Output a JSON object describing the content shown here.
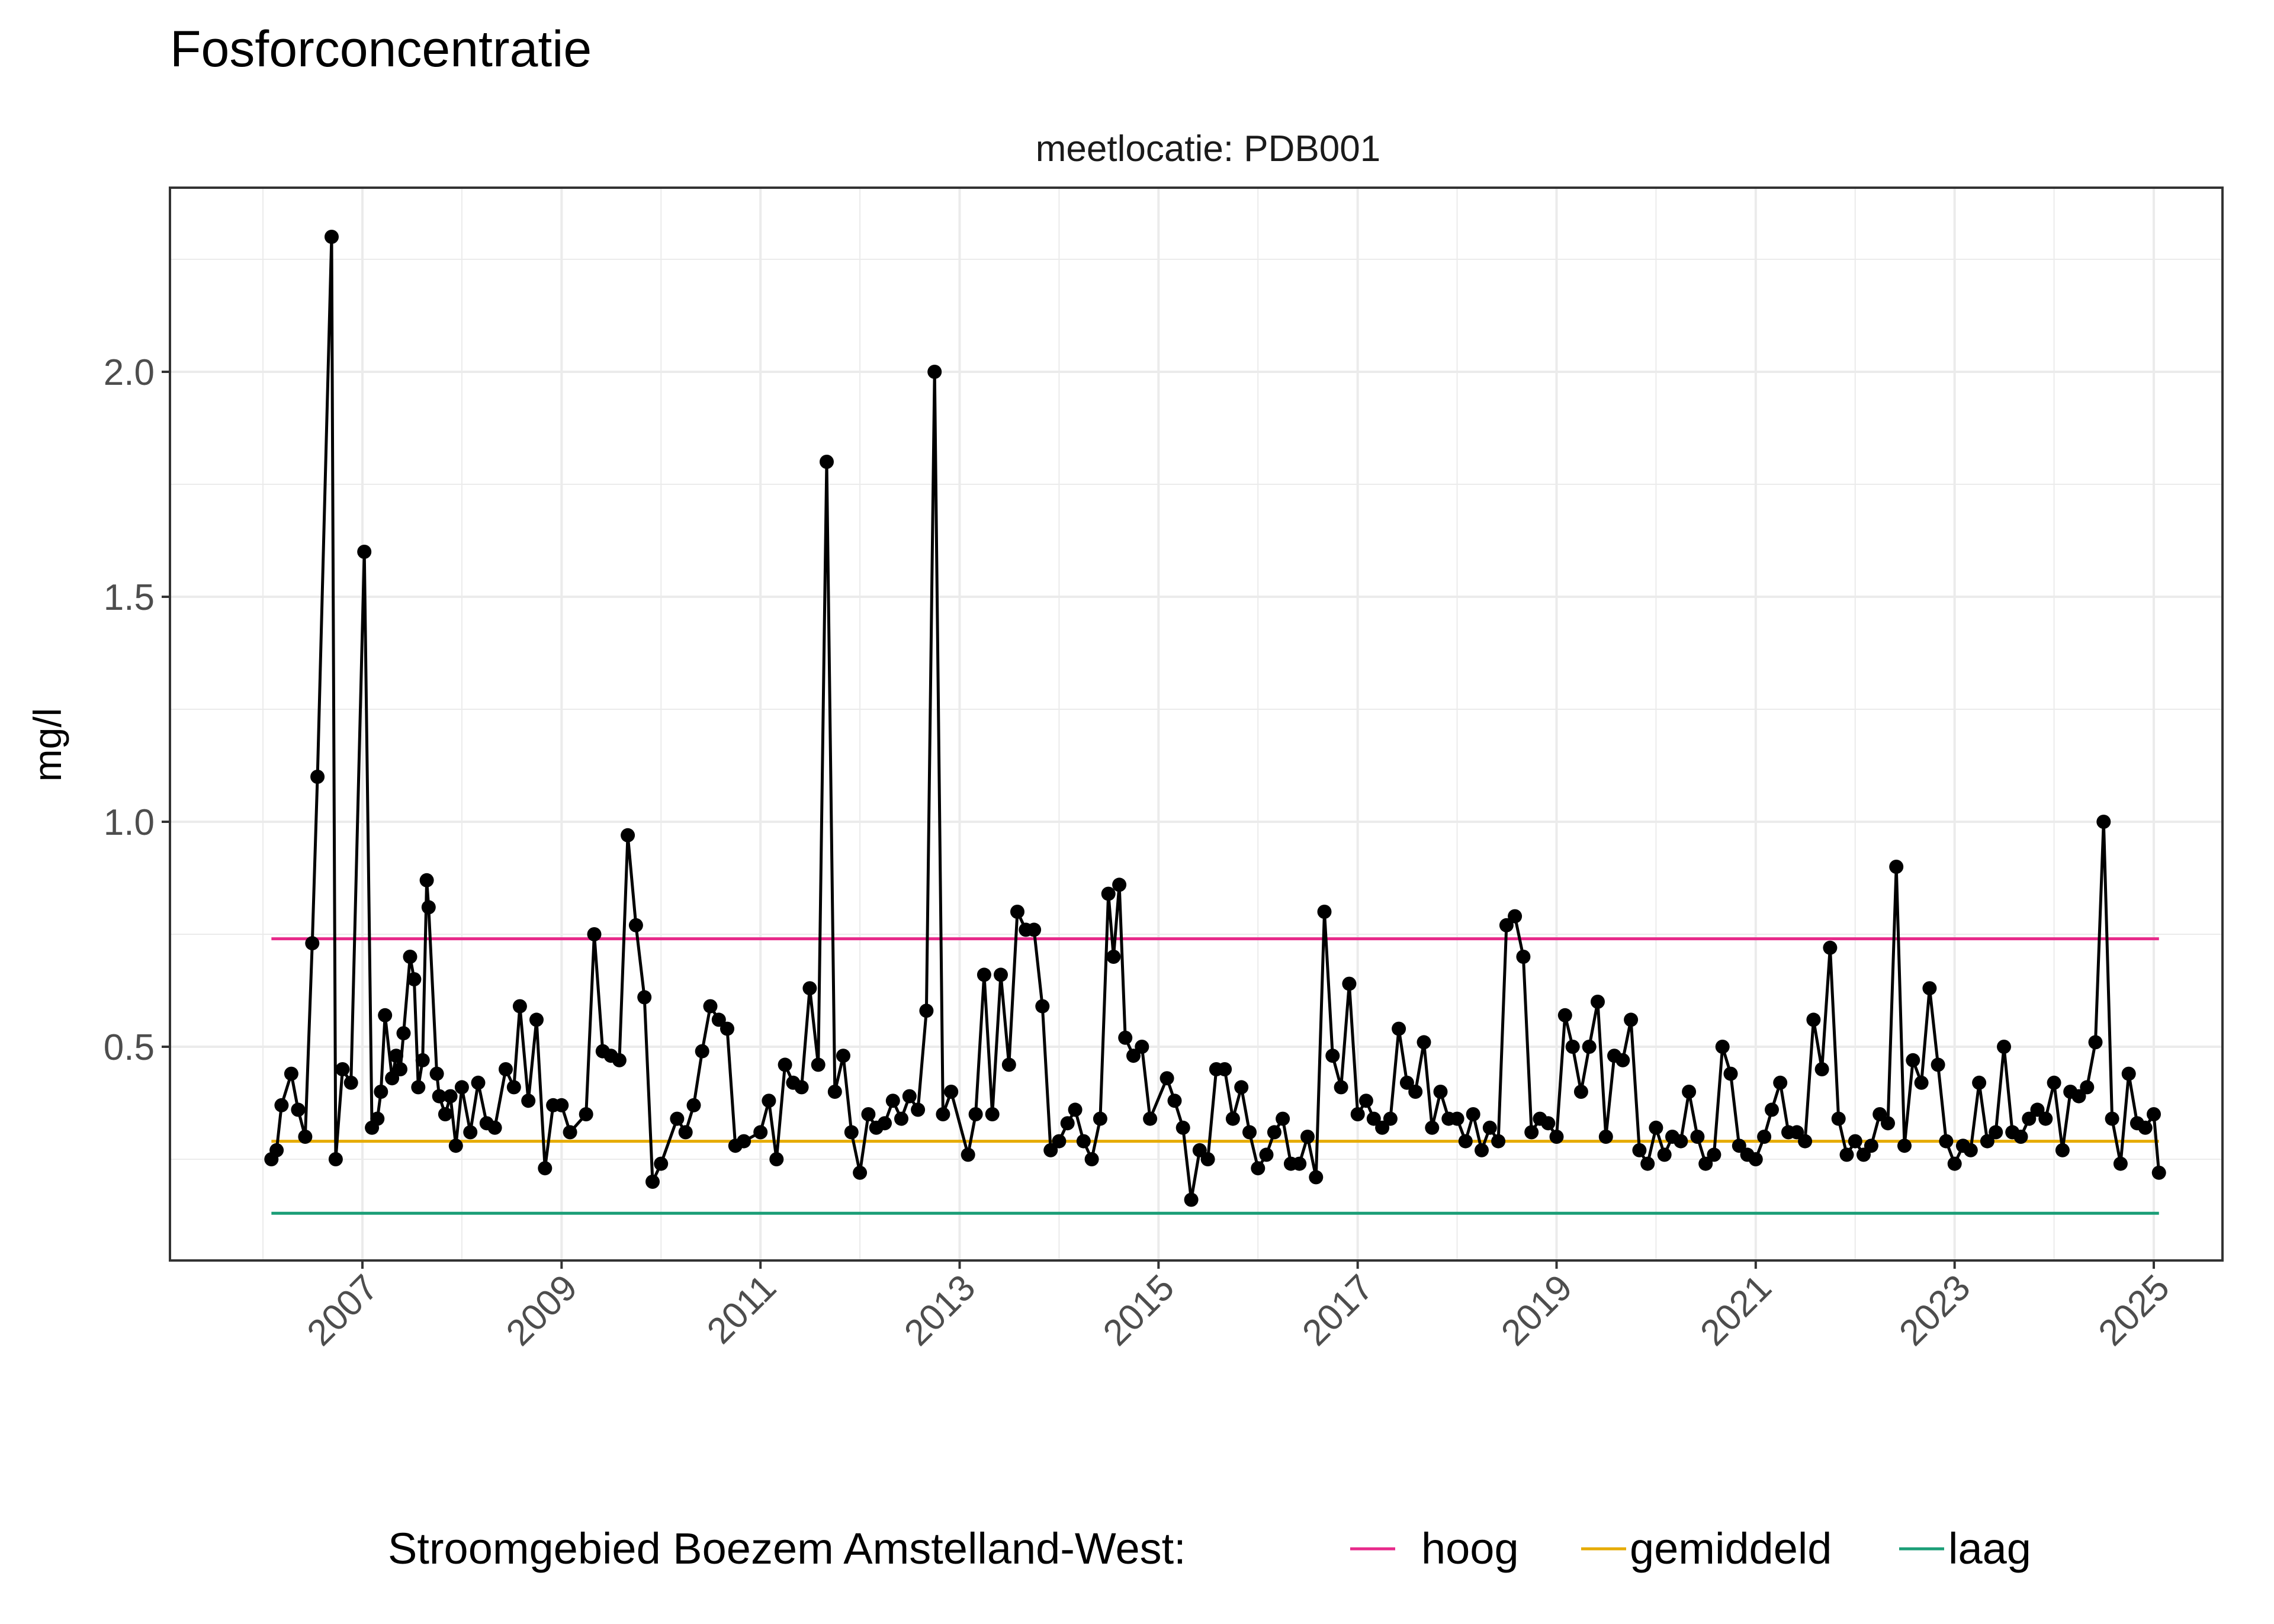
{
  "chart_data": {
    "type": "line",
    "title": "Fosforconcentratie",
    "facet_label": "meetlocatie: PDB001",
    "xlabel": "",
    "ylabel": "mg/l",
    "x_axis": "date",
    "xlim": [
      "2006-01-01",
      "2025-01-01"
    ],
    "ylim": [
      0.0,
      2.35
    ],
    "x_ticks": [
      "2007",
      "2009",
      "2011",
      "2013",
      "2015",
      "2017",
      "2019",
      "2021",
      "2023",
      "2025"
    ],
    "y_ticks": [
      "0.5",
      "1.0",
      "1.5",
      "2.0"
    ],
    "y_tick_values": [
      0.5,
      1.0,
      1.5,
      2.0
    ],
    "grid": true,
    "legend_position": "bottom",
    "legend_title": "Stroomgebied Boezem Amstelland-West:",
    "colors": {
      "line": "#000000",
      "hoog": "#E7298A",
      "gemiddeld": "#E6AB02",
      "laag": "#1B9E77",
      "grid": "#ebebeb",
      "panel_border": "#333333"
    },
    "reference_lines": [
      {
        "name": "hoog",
        "y": 0.74,
        "color": "#E7298A"
      },
      {
        "name": "gemiddeld",
        "y": 0.29,
        "color": "#E6AB02"
      },
      {
        "name": "laag",
        "y": 0.13,
        "color": "#1B9E77"
      }
    ],
    "series": [
      {
        "points": [
          [
            "2006-02-01",
            0.25
          ],
          [
            "2006-02-20",
            0.27
          ],
          [
            "2006-03-10",
            0.37
          ],
          [
            "2006-04-15",
            0.44
          ],
          [
            "2006-05-10",
            0.36
          ],
          [
            "2006-06-05",
            0.3
          ],
          [
            "2006-07-01",
            0.73
          ],
          [
            "2006-07-20",
            1.1
          ],
          [
            "2006-09-10",
            2.3
          ],
          [
            "2006-09-25",
            0.25
          ],
          [
            "2006-10-20",
            0.45
          ],
          [
            "2006-11-20",
            0.42
          ],
          [
            "2007-01-08",
            1.6
          ],
          [
            "2007-02-05",
            0.32
          ],
          [
            "2007-02-25",
            0.34
          ],
          [
            "2007-03-10",
            0.4
          ],
          [
            "2007-03-25",
            0.57
          ],
          [
            "2007-04-20",
            0.43
          ],
          [
            "2007-05-05",
            0.48
          ],
          [
            "2007-05-20",
            0.45
          ],
          [
            "2007-06-01",
            0.53
          ],
          [
            "2007-06-25",
            0.7
          ],
          [
            "2007-07-10",
            0.65
          ],
          [
            "2007-07-25",
            0.41
          ],
          [
            "2007-08-10",
            0.47
          ],
          [
            "2007-08-25",
            0.87
          ],
          [
            "2007-09-01",
            0.81
          ],
          [
            "2007-10-01",
            0.44
          ],
          [
            "2007-10-10",
            0.39
          ],
          [
            "2007-11-01",
            0.35
          ],
          [
            "2007-11-20",
            0.39
          ],
          [
            "2007-12-10",
            0.28
          ],
          [
            "2008-01-01",
            0.41
          ],
          [
            "2008-02-01",
            0.31
          ],
          [
            "2008-03-01",
            0.42
          ],
          [
            "2008-04-01",
            0.33
          ],
          [
            "2008-05-01",
            0.32
          ],
          [
            "2008-06-10",
            0.45
          ],
          [
            "2008-07-10",
            0.41
          ],
          [
            "2008-08-01",
            0.59
          ],
          [
            "2008-09-01",
            0.38
          ],
          [
            "2008-10-01",
            0.56
          ],
          [
            "2008-11-01",
            0.23
          ],
          [
            "2008-12-01",
            0.37
          ],
          [
            "2009-01-01",
            0.37
          ],
          [
            "2009-02-01",
            0.31
          ],
          [
            "2009-04-01",
            0.35
          ],
          [
            "2009-05-01",
            0.75
          ],
          [
            "2009-06-01",
            0.49
          ],
          [
            "2009-07-01",
            0.48
          ],
          [
            "2009-08-01",
            0.47
          ],
          [
            "2009-09-01",
            0.97
          ],
          [
            "2009-10-01",
            0.77
          ],
          [
            "2009-11-01",
            0.61
          ],
          [
            "2009-12-01",
            0.2
          ],
          [
            "2010-01-01",
            0.24
          ],
          [
            "2010-03-01",
            0.34
          ],
          [
            "2010-04-01",
            0.31
          ],
          [
            "2010-05-01",
            0.37
          ],
          [
            "2010-06-01",
            0.49
          ],
          [
            "2010-07-01",
            0.59
          ],
          [
            "2010-08-01",
            0.56
          ],
          [
            "2010-09-01",
            0.54
          ],
          [
            "2010-10-01",
            0.28
          ],
          [
            "2010-11-01",
            0.29
          ],
          [
            "2011-01-01",
            0.31
          ],
          [
            "2011-02-01",
            0.38
          ],
          [
            "2011-03-01",
            0.25
          ],
          [
            "2011-04-01",
            0.46
          ],
          [
            "2011-05-01",
            0.42
          ],
          [
            "2011-06-01",
            0.41
          ],
          [
            "2011-07-01",
            0.63
          ],
          [
            "2011-08-01",
            0.46
          ],
          [
            "2011-09-01",
            1.8
          ],
          [
            "2011-10-01",
            0.4
          ],
          [
            "2011-11-01",
            0.48
          ],
          [
            "2011-12-01",
            0.31
          ],
          [
            "2012-01-01",
            0.22
          ],
          [
            "2012-02-01",
            0.35
          ],
          [
            "2012-03-01",
            0.32
          ],
          [
            "2012-04-01",
            0.33
          ],
          [
            "2012-05-01",
            0.38
          ],
          [
            "2012-06-01",
            0.34
          ],
          [
            "2012-07-01",
            0.39
          ],
          [
            "2012-08-01",
            0.36
          ],
          [
            "2012-09-01",
            0.58
          ],
          [
            "2012-10-01",
            2.0
          ],
          [
            "2012-11-01",
            0.35
          ],
          [
            "2012-12-01",
            0.4
          ],
          [
            "2013-02-01",
            0.26
          ],
          [
            "2013-03-01",
            0.35
          ],
          [
            "2013-04-01",
            0.66
          ],
          [
            "2013-05-01",
            0.35
          ],
          [
            "2013-06-01",
            0.66
          ],
          [
            "2013-07-01",
            0.46
          ],
          [
            "2013-08-01",
            0.8
          ],
          [
            "2013-09-01",
            0.76
          ],
          [
            "2013-10-01",
            0.76
          ],
          [
            "2013-11-01",
            0.59
          ],
          [
            "2013-12-01",
            0.27
          ],
          [
            "2014-01-01",
            0.29
          ],
          [
            "2014-02-01",
            0.33
          ],
          [
            "2014-03-01",
            0.36
          ],
          [
            "2014-04-01",
            0.29
          ],
          [
            "2014-05-01",
            0.25
          ],
          [
            "2014-06-01",
            0.34
          ],
          [
            "2014-07-01",
            0.84
          ],
          [
            "2014-07-20",
            0.7
          ],
          [
            "2014-08-10",
            0.86
          ],
          [
            "2014-09-01",
            0.52
          ],
          [
            "2014-10-01",
            0.48
          ],
          [
            "2014-11-01",
            0.5
          ],
          [
            "2014-12-01",
            0.34
          ],
          [
            "2015-02-01",
            0.43
          ],
          [
            "2015-03-01",
            0.38
          ],
          [
            "2015-04-01",
            0.32
          ],
          [
            "2015-05-01",
            0.16
          ],
          [
            "2015-06-01",
            0.27
          ],
          [
            "2015-07-01",
            0.25
          ],
          [
            "2015-08-01",
            0.45
          ],
          [
            "2015-09-01",
            0.45
          ],
          [
            "2015-10-01",
            0.34
          ],
          [
            "2015-11-01",
            0.41
          ],
          [
            "2015-12-01",
            0.31
          ],
          [
            "2016-01-01",
            0.23
          ],
          [
            "2016-02-01",
            0.26
          ],
          [
            "2016-03-01",
            0.31
          ],
          [
            "2016-04-01",
            0.34
          ],
          [
            "2016-05-01",
            0.24
          ],
          [
            "2016-06-01",
            0.24
          ],
          [
            "2016-07-01",
            0.3
          ],
          [
            "2016-08-01",
            0.21
          ],
          [
            "2016-09-01",
            0.8
          ],
          [
            "2016-10-01",
            0.48
          ],
          [
            "2016-11-01",
            0.41
          ],
          [
            "2016-12-01",
            0.64
          ],
          [
            "2017-01-01",
            0.35
          ],
          [
            "2017-02-01",
            0.38
          ],
          [
            "2017-03-01",
            0.34
          ],
          [
            "2017-04-01",
            0.32
          ],
          [
            "2017-05-01",
            0.34
          ],
          [
            "2017-06-01",
            0.54
          ],
          [
            "2017-07-01",
            0.42
          ],
          [
            "2017-08-01",
            0.4
          ],
          [
            "2017-09-01",
            0.51
          ],
          [
            "2017-10-01",
            0.32
          ],
          [
            "2017-11-01",
            0.4
          ],
          [
            "2017-12-01",
            0.34
          ],
          [
            "2018-01-01",
            0.34
          ],
          [
            "2018-02-01",
            0.29
          ],
          [
            "2018-03-01",
            0.35
          ],
          [
            "2018-04-01",
            0.27
          ],
          [
            "2018-05-01",
            0.32
          ],
          [
            "2018-06-01",
            0.29
          ],
          [
            "2018-07-01",
            0.77
          ],
          [
            "2018-08-01",
            0.79
          ],
          [
            "2018-09-01",
            0.7
          ],
          [
            "2018-10-01",
            0.31
          ],
          [
            "2018-11-01",
            0.34
          ],
          [
            "2018-12-01",
            0.33
          ],
          [
            "2019-01-01",
            0.3
          ],
          [
            "2019-02-01",
            0.57
          ],
          [
            "2019-03-01",
            0.5
          ],
          [
            "2019-04-01",
            0.4
          ],
          [
            "2019-05-01",
            0.5
          ],
          [
            "2019-06-01",
            0.6
          ],
          [
            "2019-07-01",
            0.3
          ],
          [
            "2019-08-01",
            0.48
          ],
          [
            "2019-09-01",
            0.47
          ],
          [
            "2019-10-01",
            0.56
          ],
          [
            "2019-11-01",
            0.27
          ],
          [
            "2019-12-01",
            0.24
          ],
          [
            "2020-01-01",
            0.32
          ],
          [
            "2020-02-01",
            0.26
          ],
          [
            "2020-03-01",
            0.3
          ],
          [
            "2020-04-01",
            0.29
          ],
          [
            "2020-05-01",
            0.4
          ],
          [
            "2020-06-01",
            0.3
          ],
          [
            "2020-07-01",
            0.24
          ],
          [
            "2020-08-01",
            0.26
          ],
          [
            "2020-09-01",
            0.5
          ],
          [
            "2020-10-01",
            0.44
          ],
          [
            "2020-11-01",
            0.28
          ],
          [
            "2020-12-01",
            0.26
          ],
          [
            "2021-01-01",
            0.25
          ],
          [
            "2021-02-01",
            0.3
          ],
          [
            "2021-03-01",
            0.36
          ],
          [
            "2021-04-01",
            0.42
          ],
          [
            "2021-05-01",
            0.31
          ],
          [
            "2021-06-01",
            0.31
          ],
          [
            "2021-07-01",
            0.29
          ],
          [
            "2021-08-01",
            0.56
          ],
          [
            "2021-09-01",
            0.45
          ],
          [
            "2021-10-01",
            0.72
          ],
          [
            "2021-11-01",
            0.34
          ],
          [
            "2021-12-01",
            0.26
          ],
          [
            "2022-01-01",
            0.29
          ],
          [
            "2022-02-01",
            0.26
          ],
          [
            "2022-03-01",
            0.28
          ],
          [
            "2022-04-01",
            0.35
          ],
          [
            "2022-05-01",
            0.33
          ],
          [
            "2022-06-01",
            0.9
          ],
          [
            "2022-07-01",
            0.28
          ],
          [
            "2022-08-01",
            0.47
          ],
          [
            "2022-09-01",
            0.42
          ],
          [
            "2022-10-01",
            0.63
          ],
          [
            "2022-11-01",
            0.46
          ],
          [
            "2022-12-01",
            0.29
          ],
          [
            "2023-01-01",
            0.24
          ],
          [
            "2023-02-01",
            0.28
          ],
          [
            "2023-03-01",
            0.27
          ],
          [
            "2023-04-01",
            0.42
          ],
          [
            "2023-05-01",
            0.29
          ],
          [
            "2023-06-01",
            0.31
          ],
          [
            "2023-07-01",
            0.5
          ],
          [
            "2023-08-01",
            0.31
          ],
          [
            "2023-09-01",
            0.3
          ],
          [
            "2023-10-01",
            0.34
          ],
          [
            "2023-11-01",
            0.36
          ],
          [
            "2023-12-01",
            0.34
          ],
          [
            "2024-01-01",
            0.42
          ],
          [
            "2024-02-01",
            0.27
          ],
          [
            "2024-03-01",
            0.4
          ],
          [
            "2024-04-01",
            0.39
          ],
          [
            "2024-05-01",
            0.41
          ],
          [
            "2024-06-01",
            0.51
          ],
          [
            "2024-07-01",
            1.0
          ],
          [
            "2024-08-01",
            0.34
          ],
          [
            "2024-09-01",
            0.24
          ],
          [
            "2024-10-01",
            0.44
          ],
          [
            "2024-11-01",
            0.33
          ],
          [
            "2024-12-01",
            0.32
          ],
          [
            "2025-01-01",
            0.35
          ],
          [
            "2025-01-20",
            0.22
          ]
        ]
      }
    ]
  }
}
